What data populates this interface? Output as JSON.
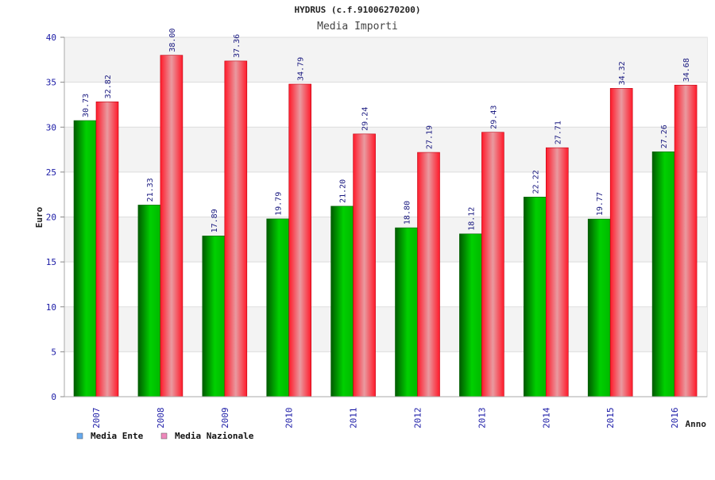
{
  "chart_data": {
    "type": "bar",
    "title": "HYDRUS (c.f.91006270200)",
    "subtitle": "Media Importi",
    "xlabel": "Anno",
    "ylabel": "Euro",
    "ylim": [
      0,
      40
    ],
    "yticks": [
      0,
      5,
      10,
      15,
      20,
      25,
      30,
      35,
      40
    ],
    "categories": [
      "2007",
      "2008",
      "2009",
      "2010",
      "2011",
      "2012",
      "2013",
      "2014",
      "2015",
      "2016"
    ],
    "series": [
      {
        "name": "Media Ente",
        "values": [
          30.73,
          21.33,
          17.89,
          19.79,
          21.2,
          18.8,
          18.12,
          22.22,
          19.77,
          27.26
        ],
        "labels": [
          "30.73",
          "21.33",
          "17.89",
          "19.79",
          "21.20",
          "18.80",
          "18.12",
          "22.22",
          "19.77",
          "27.26"
        ],
        "color": "#00b000",
        "legend_color": "#66aaee"
      },
      {
        "name": "Media Nazionale",
        "values": [
          32.82,
          38.0,
          37.36,
          34.79,
          29.24,
          27.19,
          29.43,
          27.71,
          34.32,
          34.68
        ],
        "labels": [
          "32.82",
          "38.00",
          "37.36",
          "34.79",
          "29.24",
          "27.19",
          "29.43",
          "27.71",
          "34.32",
          "34.68"
        ],
        "color": "#ee1122",
        "legend_color": "#ee88bb"
      }
    ],
    "grid": true,
    "legend": "bottom-left"
  }
}
